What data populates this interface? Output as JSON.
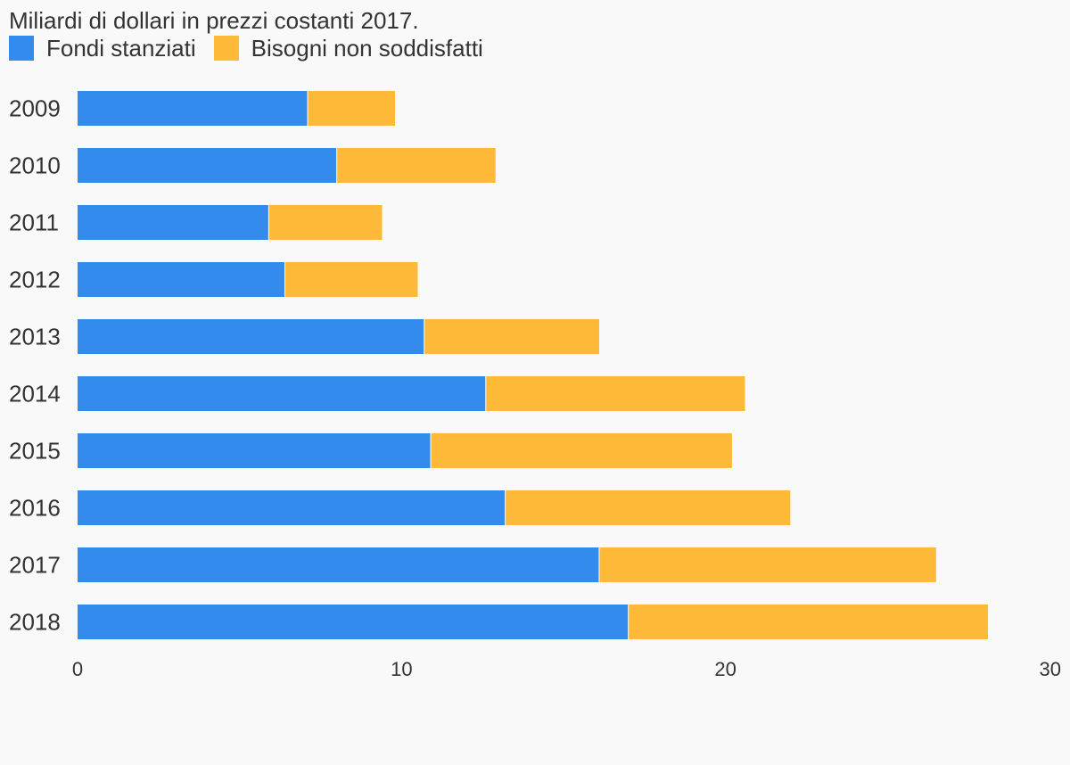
{
  "chart_data": {
    "type": "bar",
    "orientation": "horizontal",
    "stacked": true,
    "subtitle": "Miliardi di dollari in prezzi costanti 2017.",
    "categories": [
      "2009",
      "2010",
      "2011",
      "2012",
      "2013",
      "2014",
      "2015",
      "2016",
      "2017",
      "2018"
    ],
    "series": [
      {
        "name": "Fondi stanziati",
        "color": "#338bed",
        "values": [
          7.1,
          8.0,
          5.9,
          6.4,
          10.7,
          12.6,
          10.9,
          13.2,
          16.1,
          17.0
        ]
      },
      {
        "name": "Bisogni non soddisfatti",
        "color": "#feb938",
        "values": [
          2.7,
          4.9,
          3.5,
          4.1,
          5.4,
          8.0,
          9.3,
          8.8,
          10.4,
          11.1
        ]
      }
    ],
    "xlim": [
      0,
      30
    ],
    "xticks": [
      "0",
      "10",
      "20",
      "30"
    ],
    "grid": false,
    "legend_position": "top-left"
  }
}
